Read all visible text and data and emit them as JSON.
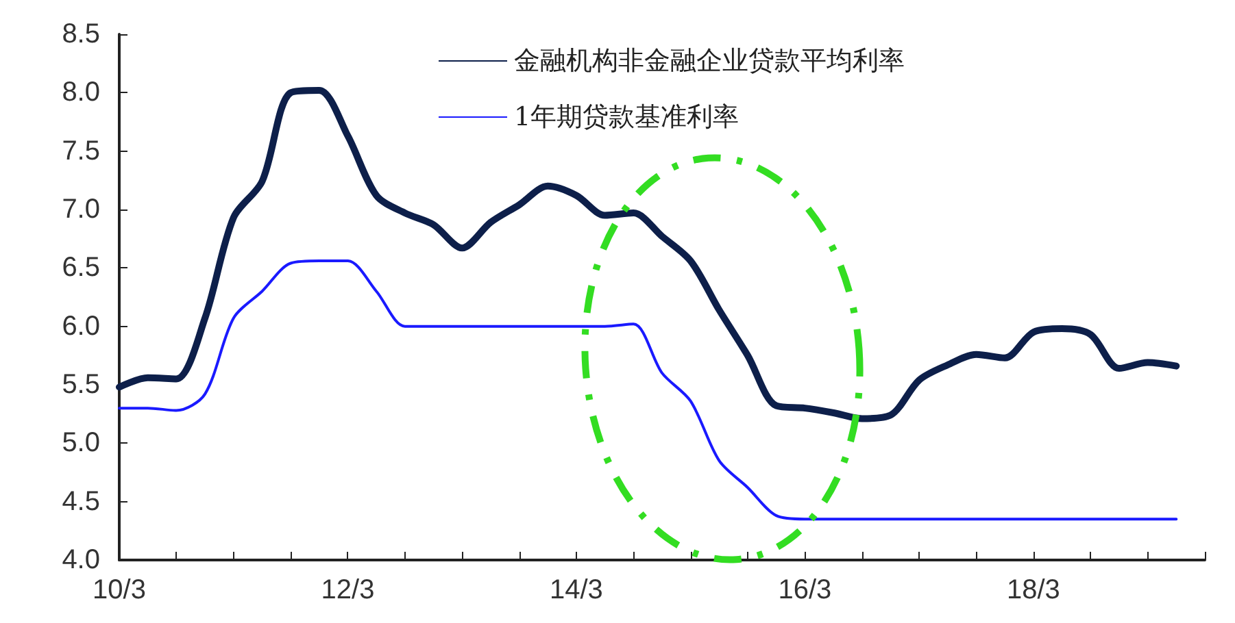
{
  "chart_data": {
    "type": "line",
    "categories": [
      "10/3",
      null,
      null,
      null,
      null,
      null,
      null,
      null,
      "12/3",
      null,
      null,
      null,
      null,
      null,
      null,
      null,
      "14/3",
      null,
      null,
      null,
      null,
      null,
      null,
      null,
      "16/3",
      null,
      null,
      null,
      null,
      null,
      null,
      null,
      "18/3",
      null,
      null,
      null,
      null,
      null,
      null
    ],
    "series": [
      {
        "name": "金融机构非金融企业贷款平均利率",
        "color": "#0d1f4a",
        "values": [
          5.48,
          5.56,
          5.55,
          6.07,
          6.93,
          7.24,
          8.0,
          8.02,
          7.63,
          7.12,
          6.97,
          6.87,
          6.67,
          6.89,
          7.04,
          7.2,
          7.12,
          6.95,
          6.97,
          6.77,
          6.56,
          6.14,
          5.75,
          5.32,
          5.3,
          5.26,
          5.21,
          5.24,
          5.54,
          5.67,
          5.76,
          5.73,
          5.95,
          5.98,
          5.93,
          5.64,
          5.69,
          5.66,
          null
        ]
      },
      {
        "name": "1年期贷款基准利率",
        "color": "#1a1aff",
        "values": [
          5.3,
          5.3,
          5.28,
          5.42,
          6.07,
          6.3,
          6.54,
          6.56,
          6.56,
          6.3,
          6.0,
          6.0,
          6.0,
          6.0,
          6.0,
          6.0,
          6.0,
          6.0,
          6.02,
          5.6,
          5.36,
          4.85,
          4.62,
          4.38,
          4.35,
          4.35,
          4.35,
          4.35,
          4.35,
          4.35,
          4.35,
          4.35,
          4.35,
          4.35,
          4.35,
          4.35,
          4.35,
          4.35,
          null
        ]
      }
    ],
    "ylim": [
      4,
      8.5
    ],
    "yticks": [
      {
        "value": 4,
        "label": "4.0"
      },
      4.5,
      {
        "value": 5,
        "label": "5.0"
      },
      5.5,
      {
        "value": 6,
        "label": "6.0"
      },
      6.5,
      {
        "value": 7,
        "label": "7.0"
      },
      7.5,
      {
        "value": 8,
        "label": "8.0"
      },
      8.5
    ],
    "grid": false,
    "legend": "top right",
    "marker": "none",
    "line_style": "solid"
  }
}
